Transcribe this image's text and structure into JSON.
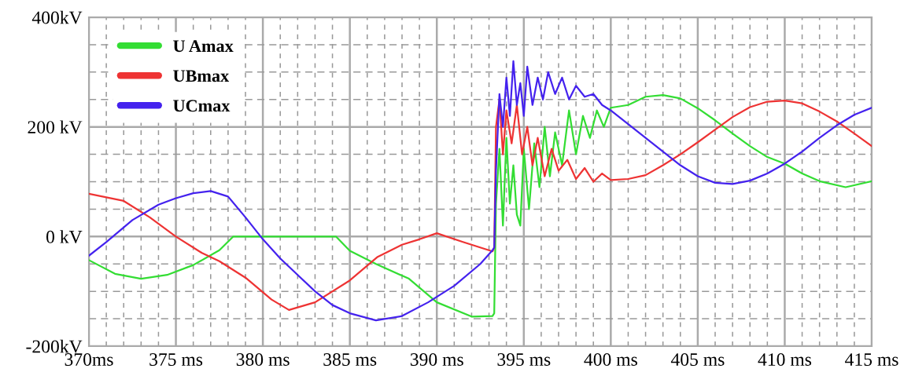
{
  "chart_data": {
    "type": "line",
    "xlim": [
      370,
      415
    ],
    "ylim": [
      -200,
      400
    ],
    "xticks": [
      {
        "value": 370,
        "label": "370ms"
      },
      {
        "value": 375,
        "label": "375 ms"
      },
      {
        "value": 380,
        "label": "380 ms"
      },
      {
        "value": 385,
        "label": "385 ms"
      },
      {
        "value": 390,
        "label": "390 ms"
      },
      {
        "value": 395,
        "label": "395 ms"
      },
      {
        "value": 400,
        "label": "400 ms"
      },
      {
        "value": 405,
        "label": "405 ms"
      },
      {
        "value": 410,
        "label": "410 ms"
      },
      {
        "value": 415,
        "label": "415 ms"
      }
    ],
    "yticks": [
      {
        "value": -200,
        "label": "-200kV"
      },
      {
        "value": 0,
        "label": "0 kV"
      },
      {
        "value": 200,
        "label": "200 kV"
      },
      {
        "value": 400,
        "label": "400kV"
      }
    ],
    "grid": true,
    "legend": "top left",
    "marker": "none",
    "line_style": "solid",
    "series": [
      {
        "name": "U Amax",
        "color": "#33dd33",
        "x": [
          370,
          371.5,
          373,
          374.5,
          376,
          377.5,
          378.3,
          380,
          382,
          384.2,
          385,
          386.5,
          388.4,
          390,
          392,
          393.2,
          393.3,
          393.4,
          393.6,
          393.8,
          394.0,
          394.2,
          394.4,
          394.6,
          394.8,
          395.0,
          395.3,
          395.6,
          395.9,
          396.2,
          396.5,
          396.8,
          397.2,
          397.6,
          398,
          398.4,
          398.8,
          399.2,
          399.6,
          400,
          401,
          402,
          403,
          404,
          405,
          406,
          407,
          408,
          409,
          410,
          411,
          412,
          413.5,
          415
        ],
        "values": [
          -43,
          -68,
          -77,
          -70,
          -52,
          -25,
          0,
          0,
          0,
          0,
          -26,
          -50,
          -77,
          -120,
          -146,
          -145,
          -140,
          60,
          160,
          20,
          180,
          60,
          130,
          40,
          20,
          160,
          50,
          170,
          90,
          200,
          110,
          190,
          130,
          230,
          150,
          220,
          180,
          230,
          200,
          235,
          240,
          255,
          258,
          252,
          234,
          212,
          188,
          165,
          145,
          133,
          115,
          101,
          90,
          101
        ]
      },
      {
        "name": "UBmax",
        "color": "#ee3333",
        "x": [
          370,
          372,
          373.5,
          375,
          376.5,
          377.5,
          379,
          380.5,
          381.5,
          383,
          385,
          386.6,
          388,
          389,
          390,
          391.5,
          393.2,
          393.3,
          393.4,
          393.6,
          393.8,
          394.0,
          394.3,
          394.6,
          394.9,
          395.2,
          395.5,
          395.8,
          396.2,
          396.6,
          397,
          397.5,
          398,
          398.5,
          399,
          399.5,
          400,
          401,
          402,
          403,
          404,
          405,
          406,
          407,
          408,
          409,
          410,
          411,
          412,
          413,
          414,
          415
        ],
        "values": [
          78,
          65,
          35,
          0,
          -30,
          -45,
          -75,
          -115,
          -134,
          -120,
          -80,
          -37,
          -15,
          -5,
          6,
          -10,
          -27,
          -20,
          200,
          250,
          150,
          230,
          170,
          240,
          150,
          200,
          130,
          180,
          110,
          160,
          120,
          140,
          105,
          125,
          100,
          115,
          103,
          105,
          112,
          130,
          150,
          172,
          195,
          218,
          236,
          246,
          248,
          243,
          228,
          210,
          188,
          165
        ]
      },
      {
        "name": "UCmax",
        "color": "#4422ee",
        "x": [
          370,
          371,
          372.5,
          374,
          375,
          376,
          377,
          378,
          379,
          380,
          381,
          382,
          383,
          384,
          385,
          386.5,
          388,
          389.5,
          391,
          392.5,
          393.2,
          393.3,
          393.4,
          393.6,
          393.8,
          394.0,
          394.2,
          394.4,
          394.6,
          394.8,
          395.0,
          395.2,
          395.5,
          395.8,
          396.1,
          396.4,
          396.8,
          397.2,
          397.6,
          398,
          398.5,
          399,
          399.5,
          400,
          401,
          402,
          403,
          404,
          405,
          406,
          407,
          408,
          409,
          410,
          411,
          412,
          413,
          414,
          415
        ],
        "values": [
          -35,
          -10,
          30,
          58,
          70,
          79,
          83,
          73,
          35,
          -5,
          -40,
          -70,
          -100,
          -125,
          -140,
          -153,
          -145,
          -120,
          -90,
          -50,
          -25,
          -20,
          120,
          260,
          200,
          290,
          220,
          320,
          240,
          280,
          220,
          310,
          240,
          290,
          250,
          300,
          260,
          290,
          250,
          275,
          255,
          260,
          240,
          230,
          205,
          180,
          155,
          130,
          110,
          98,
          96,
          102,
          115,
          133,
          155,
          180,
          203,
          222,
          235
        ]
      }
    ]
  }
}
